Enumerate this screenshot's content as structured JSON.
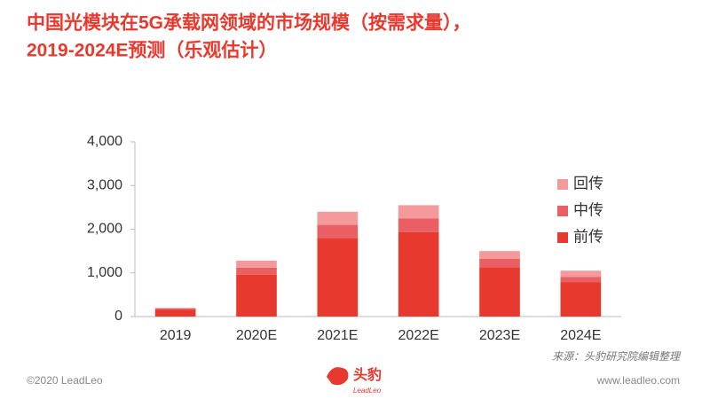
{
  "chart_data": {
    "type": "stacked_bar",
    "title": [
      "中国光模块在5G承载网领域的市场规模（按需求量），",
      "2019-2024E预测（乐观估计）"
    ],
    "categories": [
      "2019",
      "2020E",
      "2021E",
      "2022E",
      "2023E",
      "2024E"
    ],
    "series": [
      {
        "name": "前传",
        "color": "#e8392e",
        "values": [
          160,
          960,
          1800,
          1930,
          1130,
          790
        ]
      },
      {
        "name": "中传",
        "color": "#ea5f63",
        "values": [
          25,
          160,
          300,
          320,
          190,
          120
        ]
      },
      {
        "name": "回传",
        "color": "#f49a9a",
        "values": [
          15,
          160,
          300,
          300,
          180,
          140
        ]
      }
    ],
    "ylim": [
      0,
      4000
    ],
    "yticks": [
      0,
      {
        "value": 1000,
        "label": "1,000"
      },
      {
        "value": 2000,
        "label": "2,000"
      },
      {
        "value": 3000,
        "label": "3,000"
      },
      {
        "value": 4000,
        "label": "4,000"
      }
    ],
    "grid": false,
    "legend": "right",
    "source": "来源：头豹研究院编辑整理"
  },
  "footer": {
    "copyright": "©2020 LeadLeo",
    "logo_cn": "头豹",
    "logo_en": "LeadLeo",
    "url": "www.leadleo.com"
  }
}
